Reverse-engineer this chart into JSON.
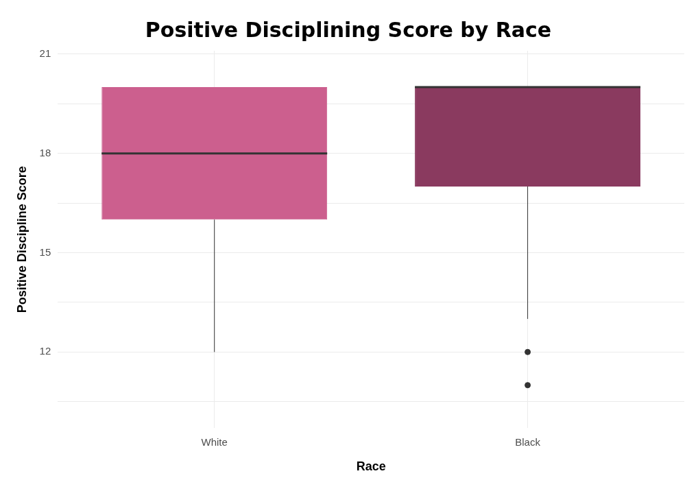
{
  "chart_data": {
    "type": "box",
    "title": "Positive Disciplining Score by Race",
    "xlabel": "Race",
    "ylabel": "Positive Discipline Score",
    "categories": [
      "White",
      "Black"
    ],
    "colors": [
      "#cc5f8e",
      "#8a3a5f"
    ],
    "boxes": [
      {
        "low": 12,
        "q1": 16,
        "median": 18,
        "q3": 20,
        "high": 20
      },
      {
        "low": 13,
        "q1": 17,
        "median": 20,
        "q3": 20,
        "high": 20,
        "outliers": [
          12,
          11
        ]
      }
    ],
    "ylim": [
      9.7,
      21.1
    ],
    "yticks": [
      {
        "value": 10.5,
        "label": null
      },
      12,
      {
        "value": 13.5,
        "label": null
      },
      15,
      {
        "value": 16.5,
        "label": null
      },
      18,
      {
        "value": 19.5,
        "label": null
      },
      21
    ],
    "grid": true
  }
}
